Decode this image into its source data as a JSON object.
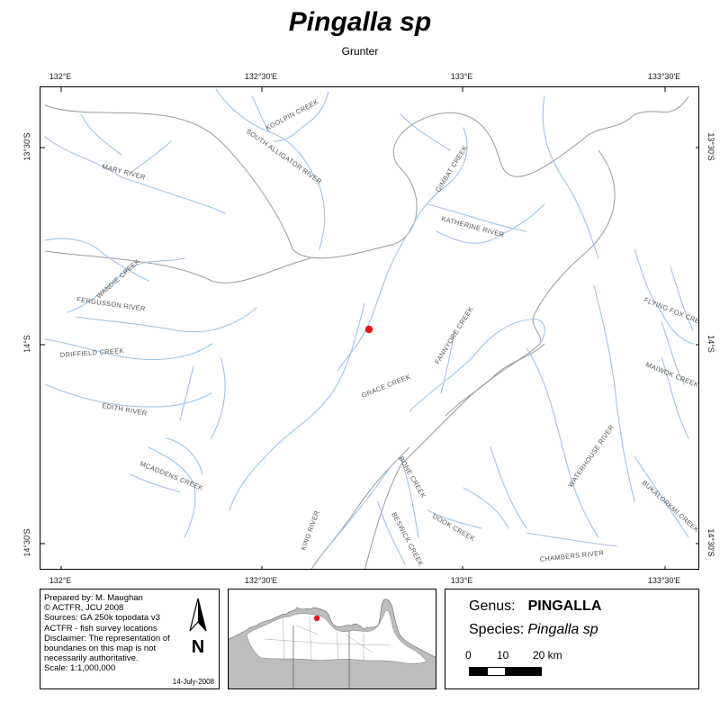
{
  "header": {
    "title": "Pingalla sp",
    "subtitle": "Grunter"
  },
  "graticule": {
    "top": [
      "132°E",
      "132°30'E",
      "133°E",
      "133°30'E"
    ],
    "bottom": [
      "132°E",
      "132°30'E",
      "133°E",
      "133°30'E"
    ],
    "left": [
      "13°30'S",
      "14°S",
      "14°30'S"
    ],
    "right": [
      "13°30'S",
      "14°S",
      "14°30'S"
    ]
  },
  "rivers": {
    "south_alligator": "SOUTH ALLIGATOR RIVER",
    "koolpin": "KOOLPIN CREEK",
    "mary": "MARY RIVER",
    "gimbat": "GIMBAT CREEK",
    "katherine": "KATHERINE RIVER",
    "wandie": "WANDIE CREEK",
    "fergusson": "FERGUSSON RIVER",
    "driffield": "DRIFFIELD CREEK",
    "edith": "EDITH RIVER",
    "mcaddens": "MCADDENS CREEK",
    "grace": "GRACE CREEK",
    "fannyore": "FANNYORE CREEK",
    "flying_fox": "FLYING FOX CREEK",
    "maiwok": "MAIWOK CREEK",
    "waterhouse": "WATERHOUSE RIVER",
    "bukalorkmi": "BUKALORKMI CREEK",
    "bone": "BONE CREEK",
    "dook": "DOOK CREEK",
    "beswick": "BESWICK CREEK",
    "king": "KING RIVER",
    "chambers": "CHAMBERS RIVER"
  },
  "survey_point": {
    "color": "#e8141c"
  },
  "colors": {
    "river": "#9cc3ea",
    "boundary": "#9a9a9a",
    "land": "#ffffff",
    "sea": "#bdbdbd",
    "point": "#e8141c"
  },
  "credits": {
    "text": "Prepared by: M. Maughan\n© ACTFR, JCU 2008\nSources: GA 250k topodata v3\nACTFR - fish survey locations\nDisclaimer: The representation of boundaries on this map is not necessarily authoritative.\nScale: 1:1,000,000",
    "date": "14-July-2008",
    "north_letter": "N",
    "north_icon": "north-arrow-icon"
  },
  "legend": {
    "genus_label": "Genus:",
    "genus_value": "PINGALLA",
    "species_label": "Species:",
    "species_value": "Pingalla sp",
    "scale_labels": [
      "0",
      "10",
      "20 km"
    ]
  }
}
